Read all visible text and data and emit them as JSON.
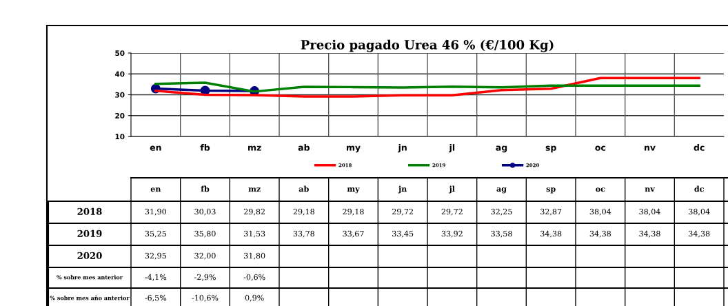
{
  "chart_data": {
    "type": "line",
    "title": "Precio pagado Urea 46 % (€/100 Kg)",
    "categories": [
      "en",
      "fb",
      "mz",
      "ab",
      "my",
      "jn",
      "jl",
      "ag",
      "sp",
      "oc",
      "nv",
      "dc"
    ],
    "series": [
      {
        "name": "2018",
        "color": "#ff0000",
        "marker": "none",
        "values": [
          31.9,
          30.03,
          29.82,
          29.18,
          29.18,
          29.72,
          29.72,
          32.25,
          32.87,
          38.04,
          38.04,
          38.04
        ],
        "value_labels": [
          "31,90",
          "30,03",
          "29,82",
          "29,18",
          "29,18",
          "29,72",
          "29,72",
          "32,25",
          "32,87",
          "38,04",
          "38,04",
          "38,04"
        ]
      },
      {
        "name": "2019",
        "color": "#008000",
        "marker": "none",
        "values": [
          35.25,
          35.8,
          31.53,
          33.78,
          33.67,
          33.45,
          33.92,
          33.58,
          34.38,
          34.38,
          34.38,
          34.38
        ],
        "value_labels": [
          "35,25",
          "35,80",
          "31,53",
          "33,78",
          "33,67",
          "33,45",
          "33,92",
          "33,58",
          "34,38",
          "34,38",
          "34,38",
          "34,38"
        ]
      },
      {
        "name": "2020",
        "color": "#000080",
        "marker": "circle",
        "values": [
          32.95,
          32.0,
          31.8,
          null,
          null,
          null,
          null,
          null,
          null,
          null,
          null,
          null
        ],
        "value_labels": [
          "32,95",
          "32,00",
          "31,80",
          null,
          null,
          null,
          null,
          null,
          null,
          null,
          null,
          null
        ]
      }
    ],
    "annotations": [
      "% sobre mes anterior",
      "-4,1%",
      "-2,9%",
      "-0,6%",
      "% sobre mes año anterior",
      "-6,5%",
      "-10,6%",
      "0,9%"
    ],
    "ylim": [
      10,
      50
    ],
    "yticks": [
      10,
      20,
      30,
      40,
      50
    ],
    "grid": true,
    "legend": "bottom"
  }
}
